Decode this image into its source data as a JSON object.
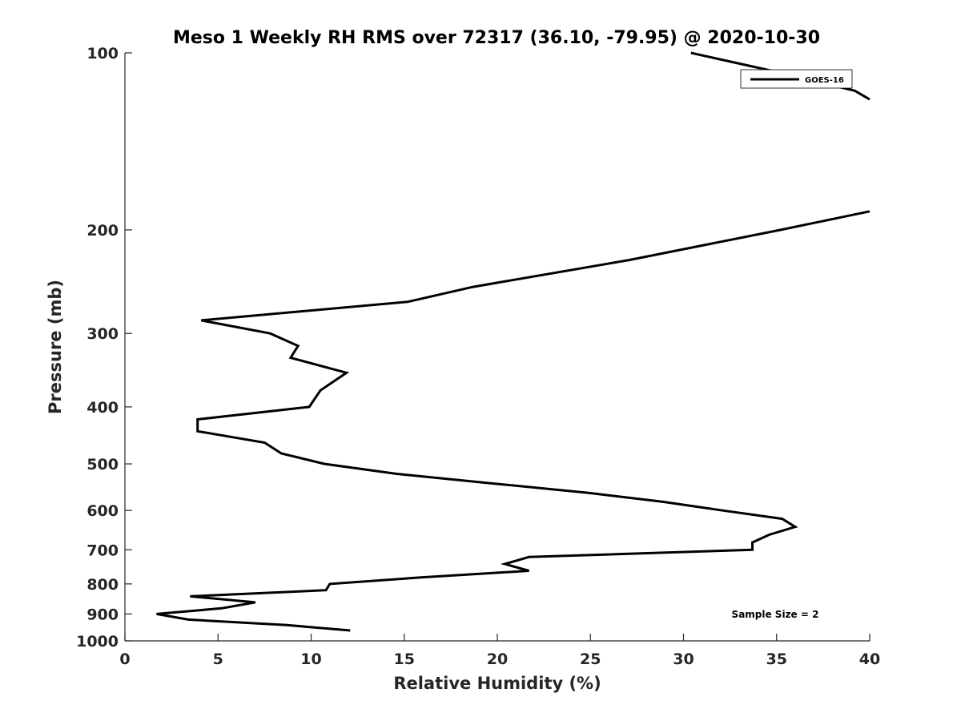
{
  "chart_data": {
    "type": "line",
    "title": "Meso 1 Weekly RH RMS over 72317 (36.10, -79.95) @ 2020-10-30",
    "xlabel": "Relative Humidity (%)",
    "ylabel": "Pressure (mb)",
    "xlim": [
      0,
      40
    ],
    "ylim": [
      100,
      1000
    ],
    "y_scale": "log",
    "y_reversed": true,
    "x_ticks": [
      "0",
      "5",
      "10",
      "15",
      "20",
      "25",
      "30",
      "35",
      "40"
    ],
    "y_ticks": [
      "100",
      "200",
      "300",
      "400",
      "500",
      "600",
      "700",
      "800",
      "900",
      "1000"
    ],
    "grid": false,
    "legend_position": "top-right",
    "annotation": "Sample Size = 2",
    "series": [
      {
        "name": "GOES-16",
        "color": "#000000",
        "segments": [
          [
            {
              "x": 30.4,
              "y": 100
            },
            {
              "x": 34.6,
              "y": 107
            },
            {
              "x": 39.2,
              "y": 116
            },
            {
              "x": 40.0,
              "y": 120
            }
          ],
          [
            {
              "x": 40.0,
              "y": 186
            },
            {
              "x": 35.2,
              "y": 200
            },
            {
              "x": 27.1,
              "y": 225
            },
            {
              "x": 18.7,
              "y": 250
            },
            {
              "x": 15.2,
              "y": 265
            },
            {
              "x": 4.1,
              "y": 285
            },
            {
              "x": 7.8,
              "y": 300
            },
            {
              "x": 9.3,
              "y": 315
            },
            {
              "x": 8.9,
              "y": 330
            },
            {
              "x": 11.9,
              "y": 350
            },
            {
              "x": 10.5,
              "y": 375
            },
            {
              "x": 9.9,
              "y": 400
            },
            {
              "x": 3.9,
              "y": 420
            },
            {
              "x": 3.9,
              "y": 440
            },
            {
              "x": 7.5,
              "y": 460
            },
            {
              "x": 8.4,
              "y": 480
            },
            {
              "x": 10.7,
              "y": 500
            },
            {
              "x": 14.6,
              "y": 520
            },
            {
              "x": 19.8,
              "y": 540
            },
            {
              "x": 24.9,
              "y": 560
            },
            {
              "x": 28.9,
              "y": 580
            },
            {
              "x": 32.1,
              "y": 600
            },
            {
              "x": 35.3,
              "y": 620
            },
            {
              "x": 36.0,
              "y": 640
            },
            {
              "x": 34.6,
              "y": 660
            },
            {
              "x": 33.7,
              "y": 680
            },
            {
              "x": 33.7,
              "y": 700
            },
            {
              "x": 21.7,
              "y": 720
            },
            {
              "x": 20.4,
              "y": 740
            },
            {
              "x": 21.7,
              "y": 760
            },
            {
              "x": 15.9,
              "y": 780
            },
            {
              "x": 11.0,
              "y": 800
            },
            {
              "x": 10.8,
              "y": 820
            },
            {
              "x": 3.5,
              "y": 840
            },
            {
              "x": 7.0,
              "y": 860
            },
            {
              "x": 5.2,
              "y": 880
            },
            {
              "x": 1.7,
              "y": 900
            },
            {
              "x": 3.4,
              "y": 920
            },
            {
              "x": 8.7,
              "y": 940
            },
            {
              "x": 12.1,
              "y": 960
            }
          ]
        ]
      }
    ]
  }
}
